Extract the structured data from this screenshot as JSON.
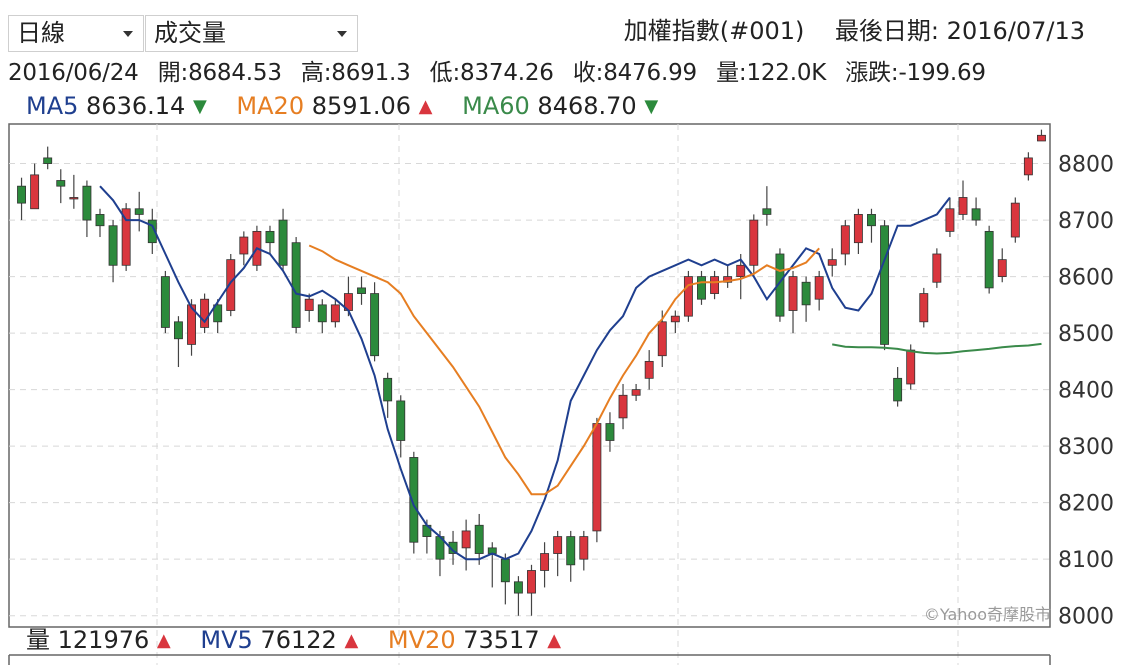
{
  "controls": {
    "period_select": "日線",
    "indicator_select": "成交量"
  },
  "header": {
    "index_name": "加權指數(#001)",
    "last_date_label": "最後日期:",
    "last_date": "2016/07/13"
  },
  "info": {
    "date": "2016/06/24",
    "open_label": "開:",
    "open": "8684.53",
    "high_label": "高:",
    "high": "8691.3",
    "low_label": "低:",
    "low": "8374.26",
    "close_label": "收:",
    "close": "8476.99",
    "volume_label": "量:",
    "volume": "122.0K",
    "change_label": "漲跌:",
    "change": "-199.69"
  },
  "ma": [
    {
      "label": "MA5",
      "value": "8636.14",
      "dir": "down",
      "color": "#1f3f8f"
    },
    {
      "label": "MA20",
      "value": "8591.06",
      "dir": "up",
      "color": "#e67e22"
    },
    {
      "label": "MA60",
      "value": "8468.70",
      "dir": "down",
      "color": "#3a8a4a"
    }
  ],
  "vol": [
    {
      "label": "量",
      "value": "121976",
      "dir": "up",
      "color": "#222222"
    },
    {
      "label": "MV5",
      "value": "76122",
      "dir": "up",
      "color": "#1f3f8f"
    },
    {
      "label": "MV20",
      "value": "73517",
      "dir": "up",
      "color": "#e67e22"
    }
  ],
  "watermark": "©Yahoo奇摩股市",
  "colors": {
    "up": "#d9363e",
    "down": "#2c8a3c",
    "grid": "#d8d8d8",
    "border": "#666666"
  },
  "chart_data": {
    "type": "candlestick",
    "ylim": [
      7980,
      8870
    ],
    "yticks": [
      "8800",
      "8700",
      "8600",
      "8500",
      "8400",
      "8300",
      "8200",
      "8100",
      "8000"
    ],
    "candles": [
      [
        8760,
        8730,
        8775,
        8700
      ],
      [
        8720,
        8780,
        8800,
        8720
      ],
      [
        8810,
        8800,
        8830,
        8790
      ],
      [
        8770,
        8760,
        8790,
        8730
      ],
      [
        8740,
        8740,
        8780,
        8720
      ],
      [
        8760,
        8700,
        8770,
        8670
      ],
      [
        8710,
        8690,
        8720,
        8670
      ],
      [
        8690,
        8620,
        8700,
        8590
      ],
      [
        8620,
        8720,
        8730,
        8610
      ],
      [
        8720,
        8710,
        8750,
        8680
      ],
      [
        8700,
        8660,
        8720,
        8640
      ],
      [
        8600,
        8510,
        8610,
        8500
      ],
      [
        8520,
        8490,
        8530,
        8440
      ],
      [
        8480,
        8550,
        8560,
        8460
      ],
      [
        8510,
        8560,
        8570,
        8500
      ],
      [
        8550,
        8520,
        8560,
        8500
      ],
      [
        8540,
        8630,
        8640,
        8530
      ],
      [
        8640,
        8670,
        8680,
        8620
      ],
      [
        8620,
        8680,
        8690,
        8610
      ],
      [
        8680,
        8660,
        8690,
        8640
      ],
      [
        8700,
        8620,
        8720,
        8610
      ],
      [
        8660,
        8510,
        8670,
        8500
      ],
      [
        8540,
        8560,
        8570,
        8520
      ],
      [
        8550,
        8520,
        8560,
        8500
      ],
      [
        8520,
        8550,
        8560,
        8510
      ],
      [
        8540,
        8570,
        8600,
        8530
      ],
      [
        8580,
        8570,
        8600,
        8550
      ],
      [
        8570,
        8460,
        8590,
        8450
      ],
      [
        8420,
        8380,
        8430,
        8350
      ],
      [
        8380,
        8310,
        8390,
        8280
      ],
      [
        8280,
        8130,
        8290,
        8110
      ],
      [
        8160,
        8140,
        8170,
        8110
      ],
      [
        8140,
        8100,
        8150,
        8070
      ],
      [
        8130,
        8110,
        8150,
        8090
      ],
      [
        8120,
        8150,
        8170,
        8080
      ],
      [
        8160,
        8110,
        8180,
        8090
      ],
      [
        8120,
        8110,
        8130,
        8050
      ],
      [
        8100,
        8060,
        8110,
        8020
      ],
      [
        8060,
        8040,
        8070,
        8000
      ],
      [
        8040,
        8080,
        8090,
        8000
      ],
      [
        8080,
        8110,
        8130,
        8050
      ],
      [
        8110,
        8140,
        8150,
        8070
      ],
      [
        8140,
        8090,
        8150,
        8060
      ],
      [
        8100,
        8140,
        8150,
        8080
      ],
      [
        8150,
        8340,
        8350,
        8130
      ],
      [
        8340,
        8310,
        8360,
        8290
      ],
      [
        8350,
        8390,
        8410,
        8330
      ],
      [
        8390,
        8400,
        8410,
        8380
      ],
      [
        8420,
        8450,
        8470,
        8400
      ],
      [
        8460,
        8520,
        8540,
        8440
      ],
      [
        8520,
        8530,
        8540,
        8500
      ],
      [
        8530,
        8600,
        8610,
        8520
      ],
      [
        8600,
        8560,
        8610,
        8550
      ],
      [
        8570,
        8600,
        8610,
        8560
      ],
      [
        8590,
        8600,
        8620,
        8580
      ],
      [
        8600,
        8620,
        8640,
        8560
      ],
      [
        8620,
        8700,
        8710,
        8600
      ],
      [
        8720,
        8710,
        8760,
        8690
      ],
      [
        8640,
        8530,
        8650,
        8520
      ],
      [
        8540,
        8600,
        8610,
        8500
      ],
      [
        8590,
        8550,
        8600,
        8520
      ],
      [
        8560,
        8600,
        8610,
        8540
      ],
      [
        8620,
        8630,
        8650,
        8600
      ],
      [
        8640,
        8690,
        8700,
        8620
      ],
      [
        8660,
        8710,
        8720,
        8640
      ],
      [
        8710,
        8690,
        8720,
        8660
      ],
      [
        8690,
        8480,
        8700,
        8470
      ],
      [
        8420,
        8380,
        8440,
        8370
      ],
      [
        8410,
        8470,
        8480,
        8400
      ],
      [
        8520,
        8570,
        8580,
        8510
      ],
      [
        8590,
        8640,
        8650,
        8580
      ],
      [
        8680,
        8720,
        8740,
        8670
      ],
      [
        8710,
        8740,
        8770,
        8700
      ],
      [
        8720,
        8700,
        8740,
        8690
      ],
      [
        8680,
        8580,
        8690,
        8570
      ],
      [
        8600,
        8630,
        8650,
        8590
      ],
      [
        8670,
        8730,
        8740,
        8660
      ],
      [
        8780,
        8810,
        8820,
        8770
      ],
      [
        8840,
        8850,
        8860,
        8840
      ]
    ],
    "series": [
      {
        "name": "MA5",
        "color": "#1f3f8f",
        "start": 6,
        "values": [
          8760,
          8735,
          8700,
          8700,
          8690,
          8640,
          8590,
          8545,
          8520,
          8555,
          8590,
          8615,
          8650,
          8640,
          8610,
          8570,
          8565,
          8575,
          8560,
          8540,
          8490,
          8425,
          8330,
          8260,
          8195,
          8160,
          8140,
          8115,
          8100,
          8100,
          8110,
          8100,
          8110,
          8150,
          8205,
          8275,
          8380,
          8425,
          8470,
          8505,
          8530,
          8580,
          8600,
          8610,
          8620,
          8630,
          8620,
          8630,
          8620,
          8630,
          8600,
          8560,
          8590,
          8620,
          8650,
          8640,
          8580,
          8545,
          8540,
          8570,
          8630,
          8690,
          8690,
          8700,
          8710,
          8740
        ]
      },
      {
        "name": "MA20",
        "color": "#e67e22",
        "start": 22,
        "values": [
          8655,
          8645,
          8630,
          8620,
          8610,
          8600,
          8590,
          8570,
          8530,
          8500,
          8470,
          8440,
          8405,
          8370,
          8325,
          8280,
          8250,
          8215,
          8215,
          8230,
          8265,
          8300,
          8340,
          8385,
          8425,
          8460,
          8500,
          8525,
          8560,
          8585,
          8590,
          8590,
          8592,
          8596,
          8605,
          8620,
          8610,
          8615,
          8625,
          8650
        ]
      },
      {
        "name": "MA60",
        "color": "#3a8a4a",
        "start": 62,
        "values": [
          8480,
          8476,
          8475,
          8475,
          8474,
          8472,
          8468,
          8465,
          8464,
          8465,
          8468,
          8470,
          8472,
          8475,
          8477,
          8478,
          8481
        ]
      }
    ]
  }
}
